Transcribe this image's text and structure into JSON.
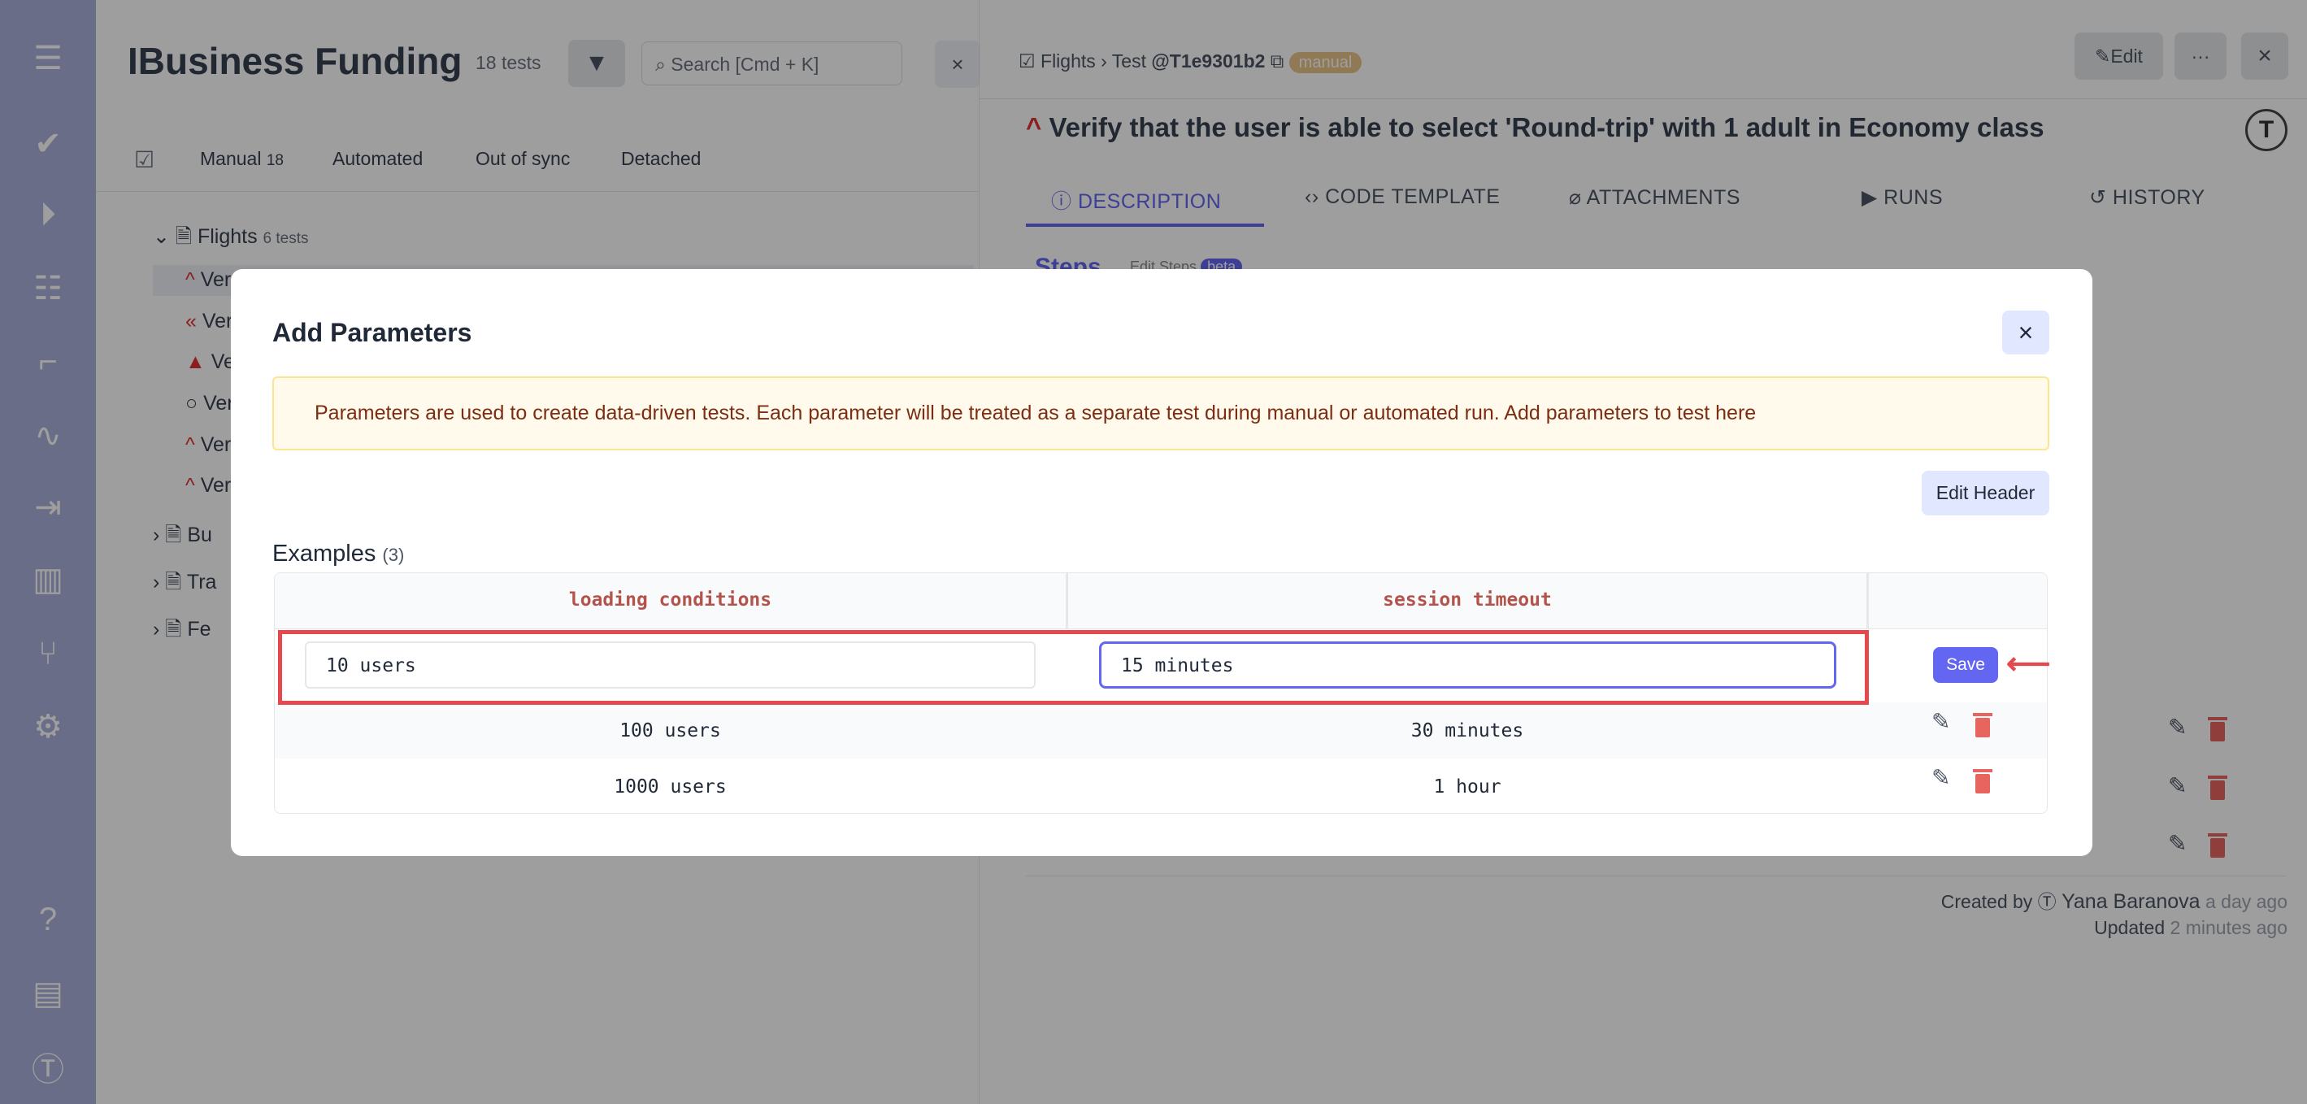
{
  "sidebar": {
    "items": [
      "menu-icon",
      "check-icon",
      "play-circle-icon",
      "checklist-icon",
      "steps-icon",
      "pulse-icon",
      "import-icon",
      "analytics-icon",
      "branch-icon",
      "gear-icon",
      "help-icon",
      "folders-icon",
      "logo-icon"
    ]
  },
  "project": {
    "title": "IBusiness Funding",
    "count": "18 tests",
    "search_placeholder": "Search [Cmd + K]"
  },
  "filter_tabs": [
    {
      "label": "Manual",
      "count": "18"
    },
    {
      "label": "Automated"
    },
    {
      "label": "Out of sync"
    },
    {
      "label": "Detached"
    }
  ],
  "tree": {
    "suite": "Flights",
    "suite_count": "6 tests",
    "items": [
      "Ver",
      "Ver",
      "Ver",
      "Ver",
      "Ver",
      "Ver"
    ],
    "other_suites": [
      "Bu",
      "Tra",
      "Fe"
    ]
  },
  "detail": {
    "breadcrumb": [
      "Flights",
      "Test"
    ],
    "test_id": "@T1e9301b2",
    "badge": "manual",
    "edit_label": "Edit",
    "more_label": "···",
    "title": "Verify that the user is able to select 'Round-trip' with 1 adult in Economy class",
    "tabs": [
      "DESCRIPTION",
      "CODE TEMPLATE",
      "ATTACHMENTS",
      "RUNS",
      "HISTORY"
    ],
    "steps_label": "Steps",
    "edit_steps": "Edit Steps",
    "beta": "beta",
    "created_by_label": "Created by",
    "author": "Yana Baranova",
    "created_time": "a day ago",
    "updated_label": "Updated",
    "updated_time": "2 minutes ago"
  },
  "modal": {
    "title": "Add Parameters",
    "close": "×",
    "alert": "Parameters are used to create data-driven tests. Each parameter will be treated as a separate test during manual or automated run. Add parameters to test here",
    "edit_header": "Edit Header",
    "examples_label": "Examples",
    "examples_count": "(3)",
    "columns": [
      "loading conditions",
      "session timeout"
    ],
    "editing_row": {
      "values": [
        "10 users",
        "15 minutes"
      ],
      "save": "Save"
    },
    "rows": [
      [
        "100 users",
        "30 minutes"
      ],
      [
        "1000 users",
        "1 hour"
      ]
    ]
  },
  "colors": {
    "accent": "#6366f1",
    "highlight": "#e5484d",
    "header_text": "#b4534c",
    "alert_bg": "#fffaeb"
  }
}
